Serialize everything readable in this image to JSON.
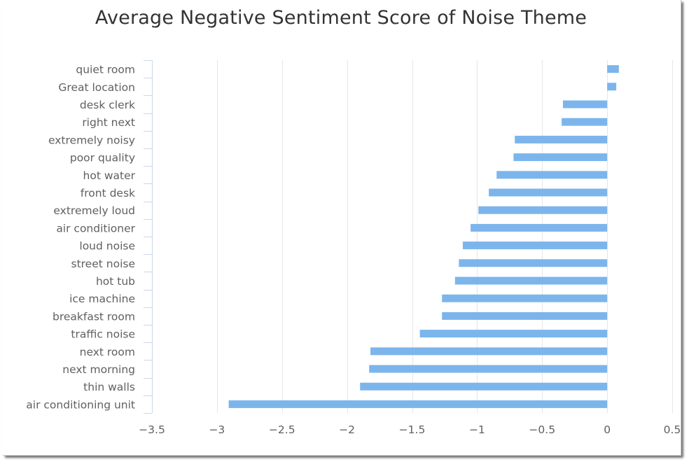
{
  "colors": {
    "bar": "#7cb5ec",
    "grid": "#e6e6e6",
    "axis": "#ccd6eb",
    "text": "#606060",
    "title": "#333333"
  },
  "chart_data": {
    "type": "bar",
    "orientation": "horizontal",
    "title": "Average Negative Sentiment Score of Noise Theme",
    "xlabel": "",
    "ylabel": "",
    "categories": [
      "quiet room",
      "Great location",
      "desk clerk",
      "right next",
      "extremely noisy",
      "poor quality",
      "hot water",
      "front desk",
      "extremely loud",
      "air conditioner",
      "loud noise",
      "street noise",
      "hot tub",
      "ice machine",
      "breakfast room",
      "traffic noise",
      "next room",
      "next morning",
      "thin walls",
      "air conditioning unit"
    ],
    "values": [
      0.09,
      0.07,
      -0.34,
      -0.35,
      -0.71,
      -0.72,
      -0.85,
      -0.91,
      -0.99,
      -1.05,
      -1.11,
      -1.14,
      -1.17,
      -1.27,
      -1.27,
      -1.44,
      -1.82,
      -1.83,
      -1.9,
      -2.91
    ],
    "xlim": [
      -3.5,
      0.5
    ],
    "ticks": [
      -3.5,
      -3,
      -2.5,
      -2,
      -1.5,
      -1,
      -0.5,
      0,
      0.5
    ],
    "tick_labels": [
      "−3.5",
      "−3",
      "−2.5",
      "−2",
      "−1.5",
      "−1",
      "−0.5",
      "0",
      "0.5"
    ],
    "grid": true,
    "legend": "none"
  }
}
